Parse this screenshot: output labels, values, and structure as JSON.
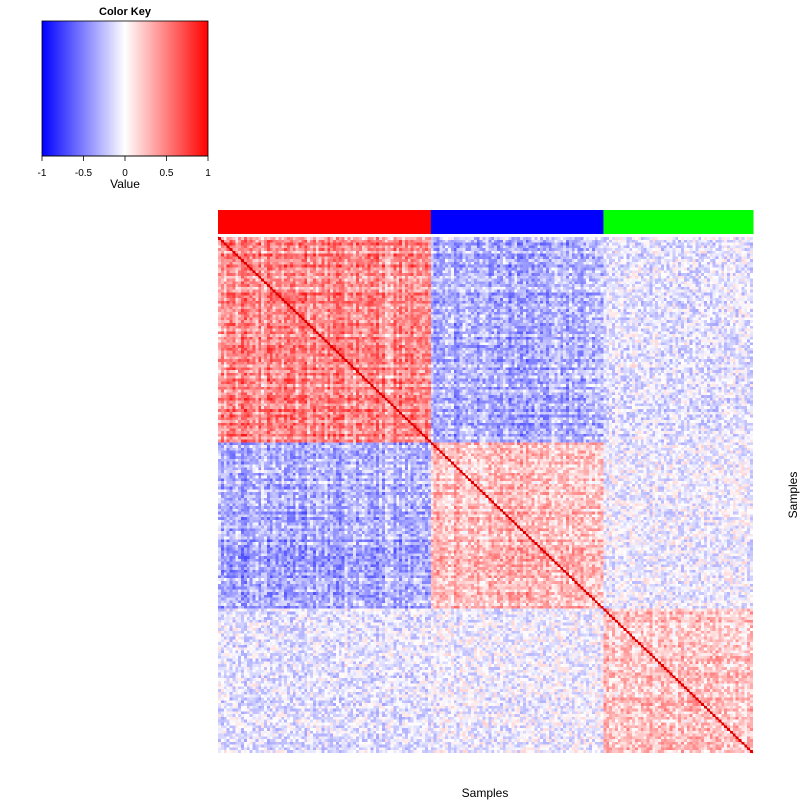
{
  "chart_data": {
    "type": "heatmap",
    "subtype": "sample-sample correlation matrix with column side color bar",
    "color_key": {
      "title": "Color Key",
      "xlabel": "Value",
      "range": [
        -1,
        1
      ],
      "ticks": [
        "-1",
        "-0.5",
        "0",
        "0.5",
        "1"
      ],
      "tick_values": [
        -1,
        -0.5,
        0,
        0.5,
        1
      ],
      "colors": {
        "low": "#0000ff",
        "mid": "#ffffff",
        "high": "#ff0000"
      }
    },
    "xlabel": "Samples",
    "ylabel": "Samples",
    "groups": [
      {
        "color": "#ff0000",
        "size": 74
      },
      {
        "color": "#0000ff",
        "size": 60
      },
      {
        "color": "#00ff00",
        "size": 52
      }
    ],
    "n_samples": 186,
    "diagonal_value": 1.0,
    "mean_correlation_blocks": [
      [
        0.35,
        -0.25,
        -0.08
      ],
      [
        -0.25,
        0.22,
        -0.05
      ],
      [
        -0.08,
        -0.05,
        0.18
      ]
    ]
  }
}
